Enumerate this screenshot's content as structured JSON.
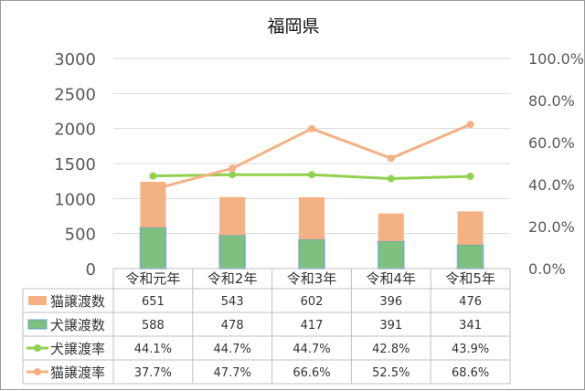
{
  "chart_data": {
    "type": "bar",
    "title": "福岡県",
    "categories": [
      "令和元年",
      "令和2年",
      "令和3年",
      "令和4年",
      "令和5年"
    ],
    "stacked": true,
    "series": [
      {
        "name": "猫譲渡数",
        "kind": "bar",
        "axis": "left",
        "color": "#F4B183",
        "values": [
          651,
          543,
          602,
          396,
          476
        ],
        "labels": [
          "651",
          "543",
          "602",
          "396",
          "476"
        ]
      },
      {
        "name": "犬譲渡数",
        "kind": "bar",
        "axis": "left",
        "color": "#7FC07F",
        "edge_color": "#5B9BD5",
        "values": [
          588,
          478,
          417,
          391,
          341
        ],
        "labels": [
          "588",
          "478",
          "417",
          "391",
          "341"
        ]
      },
      {
        "name": "犬譲渡率",
        "kind": "line",
        "axis": "right",
        "color": "#92D050",
        "values": [
          44.1,
          44.7,
          44.7,
          42.8,
          43.9
        ],
        "labels": [
          "44.1%",
          "44.7%",
          "44.7%",
          "42.8%",
          "43.9%"
        ]
      },
      {
        "name": "猫譲渡率",
        "kind": "line",
        "axis": "right",
        "color": "#F4B183",
        "values": [
          37.7,
          47.7,
          66.6,
          52.5,
          68.6
        ],
        "labels": [
          "37.7%",
          "47.7%",
          "66.6%",
          "52.5%",
          "68.6%"
        ]
      }
    ],
    "y_left": {
      "min": 0,
      "max": 3000,
      "ticks": [
        "0",
        "500",
        "1000",
        "1500",
        "2000",
        "2500",
        "3000"
      ]
    },
    "y_right": {
      "min": 0,
      "max": 100,
      "ticks": [
        "0.0%",
        "20.0%",
        "40.0%",
        "60.0%",
        "80.0%",
        "100.0%"
      ]
    },
    "grid": true,
    "legend": "data-table"
  }
}
